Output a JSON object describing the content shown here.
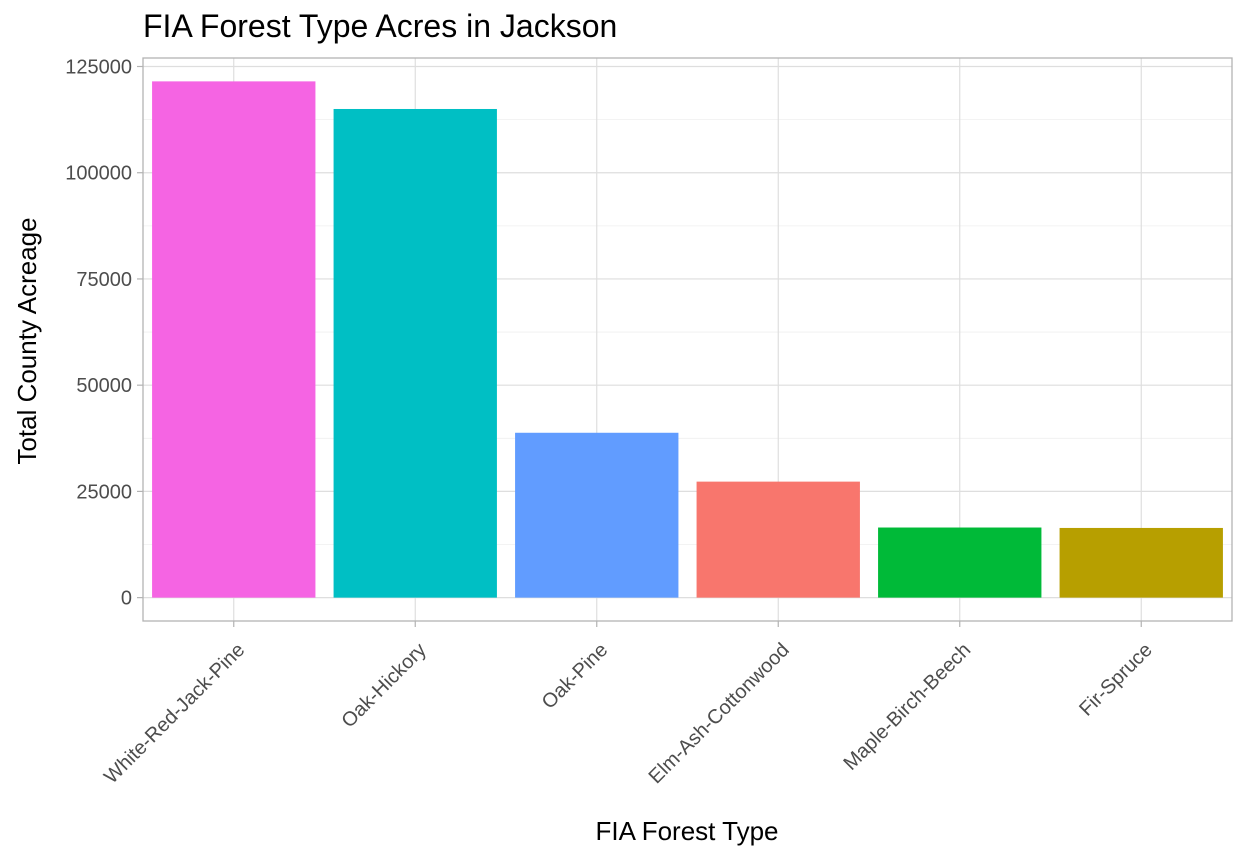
{
  "chart_data": {
    "type": "bar",
    "title": "FIA Forest Type Acres in Jackson",
    "xlabel": "FIA Forest Type",
    "ylabel": "Total County Acreage",
    "categories": [
      "White-Red-Jack-Pine",
      "Oak-Hickory",
      "Oak-Pine",
      "Elm-Ash-Cottonwood",
      "Maple-Birch-Beech",
      "Fir-Spruce"
    ],
    "values": [
      121500,
      115000,
      38800,
      27300,
      16500,
      16400
    ],
    "colors": [
      "#f564e3",
      "#00bfc4",
      "#619cff",
      "#f8766d",
      "#00ba38",
      "#b79f00"
    ],
    "yticks": [
      0,
      25000,
      50000,
      75000,
      100000,
      125000
    ],
    "ytick_labels": [
      "0",
      "25000",
      "50000",
      "75000",
      "100000",
      "125000"
    ],
    "ylim": [
      -5500,
      127000
    ],
    "grid": true,
    "legend": "none"
  }
}
